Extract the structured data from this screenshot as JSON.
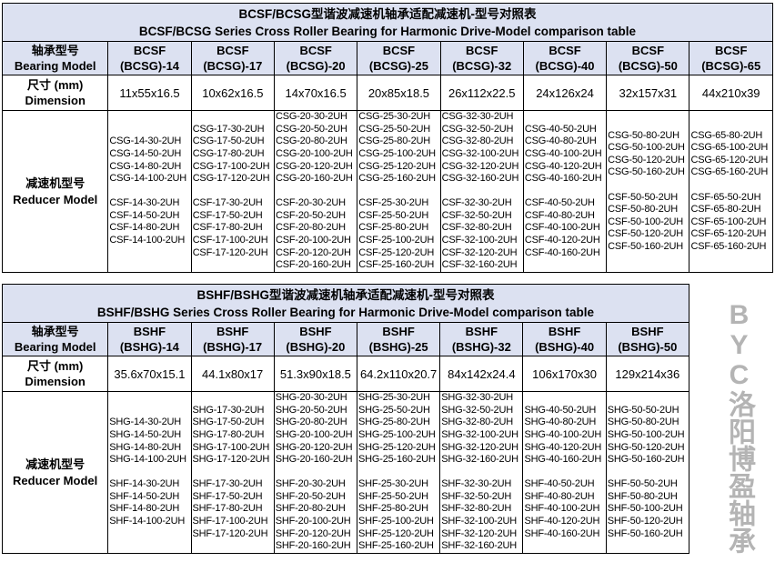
{
  "watermark": "BYC洛阳博盈轴承",
  "tables": [
    {
      "title_cn": "BCSF/BCSG型谐波减速机轴承适配减速机-型号对照表",
      "title_en": "BCSF/BCSG Series Cross Roller Bearing for Harmonic Drive-Model comparison table",
      "model_label_cn": "轴承型号",
      "model_label_en": "Bearing Model",
      "dim_label_cn": "尺寸 (mm)",
      "dim_label_en": "Dimension",
      "reducer_label_cn": "减速机型号",
      "reducer_label_en": "Reducer Model",
      "columns": [
        {
          "l1": "BCSF",
          "l2": "(BCSG)-14",
          "dim": "11x55x16.5",
          "g": [
            "CSG-14-30-2UH",
            "CSG-14-50-2UH",
            "CSG-14-80-2UH",
            "CSG-14-100-2UH"
          ],
          "f": [
            "CSF-14-30-2UH",
            "CSF-14-50-2UH",
            "CSF-14-80-2UH",
            "CSF-14-100-2UH"
          ]
        },
        {
          "l1": "BCSF",
          "l2": "(BCSG)-17",
          "dim": "10x62x16.5",
          "g": [
            "CSG-17-30-2UH",
            "CSG-17-50-2UH",
            "CSG-17-80-2UH",
            "CSG-17-100-2UH",
            "CSG-17-120-2UH"
          ],
          "f": [
            "CSF-17-30-2UH",
            "CSF-17-50-2UH",
            "CSF-17-80-2UH",
            "CSF-17-100-2UH",
            "CSF-17-120-2UH"
          ]
        },
        {
          "l1": "BCSF",
          "l2": "(BCSG)-20",
          "dim": "14x70x16.5",
          "g": [
            "CSG-20-30-2UH",
            "CSG-20-50-2UH",
            "CSG-20-80-2UH",
            "CSG-20-100-2UH",
            "CSG-20-120-2UH",
            "CSG-20-160-2UH"
          ],
          "f": [
            "CSF-20-30-2UH",
            "CSF-20-50-2UH",
            "CSF-20-80-2UH",
            "CSF-20-100-2UH",
            "CSF-20-120-2UH",
            "CSF-20-160-2UH"
          ]
        },
        {
          "l1": "BCSF",
          "l2": "(BCSG)-25",
          "dim": "20x85x18.5",
          "g": [
            "CSG-25-30-2UH",
            "CSG-25-50-2UH",
            "CSG-25-80-2UH",
            "CSG-25-100-2UH",
            "CSG-25-120-2UH",
            "CSG-25-160-2UH"
          ],
          "f": [
            "CSF-25-30-2UH",
            "CSF-25-50-2UH",
            "CSF-25-80-2UH",
            "CSF-25-100-2UH",
            "CSF-25-120-2UH",
            "CSF-25-160-2UH"
          ]
        },
        {
          "l1": "BCSF",
          "l2": "(BCSG)-32",
          "dim": "26x112x22.5",
          "g": [
            "CSG-32-30-2UH",
            "CSG-32-50-2UH",
            "CSG-32-80-2UH",
            "CSG-32-100-2UH",
            "CSG-32-120-2UH",
            "CSG-32-160-2UH"
          ],
          "f": [
            "CSF-32-30-2UH",
            "CSF-32-50-2UH",
            "CSF-32-80-2UH",
            "CSF-32-100-2UH",
            "CSF-32-120-2UH",
            "CSF-32-160-2UH"
          ]
        },
        {
          "l1": "BCSF",
          "l2": "(BCSG)-40",
          "dim": "24x126x24",
          "g": [
            "CSG-40-50-2UH",
            "CSG-40-80-2UH",
            "CSG-40-100-2UH",
            "CSG-40-120-2UH",
            "CSG-40-160-2UH"
          ],
          "f": [
            "CSF-40-50-2UH",
            "CSF-40-80-2UH",
            "CSF-40-100-2UH",
            "CSF-40-120-2UH",
            "CSF-40-160-2UH"
          ]
        },
        {
          "l1": "BCSF",
          "l2": "(BCSG)-50",
          "dim": "32x157x31",
          "g": [
            "CSG-50-80-2UH",
            "CSG-50-100-2UH",
            "CSG-50-120-2UH",
            "CSG-50-160-2UH"
          ],
          "f": [
            "CSF-50-50-2UH",
            "CSF-50-80-2UH",
            "CSF-50-100-2UH",
            "CSF-50-120-2UH",
            "CSF-50-160-2UH"
          ]
        },
        {
          "l1": "BCSF",
          "l2": "(BCSG)-65",
          "dim": "44x210x39",
          "g": [
            "CSG-65-80-2UH",
            "CSG-65-100-2UH",
            "CSG-65-120-2UH",
            "CSG-65-160-2UH"
          ],
          "f": [
            "CSF-65-50-2UH",
            "CSF-65-80-2UH",
            "CSF-65-100-2UH",
            "CSF-65-120-2UH",
            "CSF-65-160-2UH"
          ]
        }
      ]
    },
    {
      "title_cn": "BSHF/BSHG型谐波减速机轴承适配减速机-型号对照表",
      "title_en": "BSHF/BSHG Series Cross Roller Bearing for Harmonic Drive-Model comparison table",
      "model_label_cn": "轴承型号",
      "model_label_en": "Bearing Model",
      "dim_label_cn": "尺寸 (mm)",
      "dim_label_en": "Dimension",
      "reducer_label_cn": "减速机型号",
      "reducer_label_en": "Reducer Model",
      "columns": [
        {
          "l1": "BSHF",
          "l2": "(BSHG)-14",
          "dim": "35.6x70x15.1",
          "g": [
            "SHG-14-30-2UH",
            "SHG-14-50-2UH",
            "SHG-14-80-2UH",
            "SHG-14-100-2UH"
          ],
          "f": [
            "SHF-14-30-2UH",
            "SHF-14-50-2UH",
            "SHF-14-80-2UH",
            "SHF-14-100-2UH"
          ]
        },
        {
          "l1": "BSHF",
          "l2": "(BSHG)-17",
          "dim": "44.1x80x17",
          "g": [
            "SHG-17-30-2UH",
            "SHG-17-50-2UH",
            "SHG-17-80-2UH",
            "SHG-17-100-2UH",
            "SHG-17-120-2UH"
          ],
          "f": [
            "SHF-17-30-2UH",
            "SHF-17-50-2UH",
            "SHF-17-80-2UH",
            "SHF-17-100-2UH",
            "SHF-17-120-2UH"
          ]
        },
        {
          "l1": "BSHF",
          "l2": "(BSHG)-20",
          "dim": "51.3x90x18.5",
          "g": [
            "SHG-20-30-2UH",
            "SHG-20-50-2UH",
            "SHG-20-80-2UH",
            "SHG-20-100-2UH",
            "SHG-20-120-2UH",
            "SHG-20-160-2UH"
          ],
          "f": [
            "SHF-20-30-2UH",
            "SHF-20-50-2UH",
            "SHF-20-80-2UH",
            "SHF-20-100-2UH",
            "SHF-20-120-2UH",
            "SHF-20-160-2UH"
          ]
        },
        {
          "l1": "BSHF",
          "l2": "(BSHG)-25",
          "dim": "64.2x110x20.7",
          "g": [
            "SHG-25-30-2UH",
            "SHG-25-50-2UH",
            "SHG-25-80-2UH",
            "SHG-25-100-2UH",
            "SHG-25-120-2UH",
            "SHG-25-160-2UH"
          ],
          "f": [
            "SHF-25-30-2UH",
            "SHF-25-50-2UH",
            "SHF-25-80-2UH",
            "SHF-25-100-2UH",
            "SHF-25-120-2UH",
            "SHF-25-160-2UH"
          ]
        },
        {
          "l1": "BSHF",
          "l2": "(BSHG)-32",
          "dim": "84x142x24.4",
          "g": [
            "SHG-32-30-2UH",
            "SHG-32-50-2UH",
            "SHG-32-80-2UH",
            "SHG-32-100-2UH",
            "SHG-32-120-2UH",
            "SHG-32-160-2UH"
          ],
          "f": [
            "SHF-32-30-2UH",
            "SHF-32-50-2UH",
            "SHF-32-80-2UH",
            "SHF-32-100-2UH",
            "SHF-32-120-2UH",
            "SHF-32-160-2UH"
          ]
        },
        {
          "l1": "BSHF",
          "l2": "(BSHG)-40",
          "dim": "106x170x30",
          "g": [
            "SHG-40-50-2UH",
            "SHG-40-80-2UH",
            "SHG-40-100-2UH",
            "SHG-40-120-2UH",
            "SHG-40-160-2UH"
          ],
          "f": [
            "SHF-40-50-2UH",
            "SHF-40-80-2UH",
            "SHF-40-100-2UH",
            "SHF-40-120-2UH",
            "SHF-40-160-2UH"
          ]
        },
        {
          "l1": "BSHF",
          "l2": "(BSHG)-50",
          "dim": "129x214x36",
          "g": [
            "SHG-50-50-2UH",
            "SHG-50-80-2UH",
            "SHG-50-100-2UH",
            "SHG-50-120-2UH",
            "SHG-50-160-2UH"
          ],
          "f": [
            "SHF-50-50-2UH",
            "SHF-50-80-2UH",
            "SHF-50-100-2UH",
            "SHF-50-120-2UH",
            "SHF-50-160-2UH"
          ]
        }
      ]
    }
  ]
}
